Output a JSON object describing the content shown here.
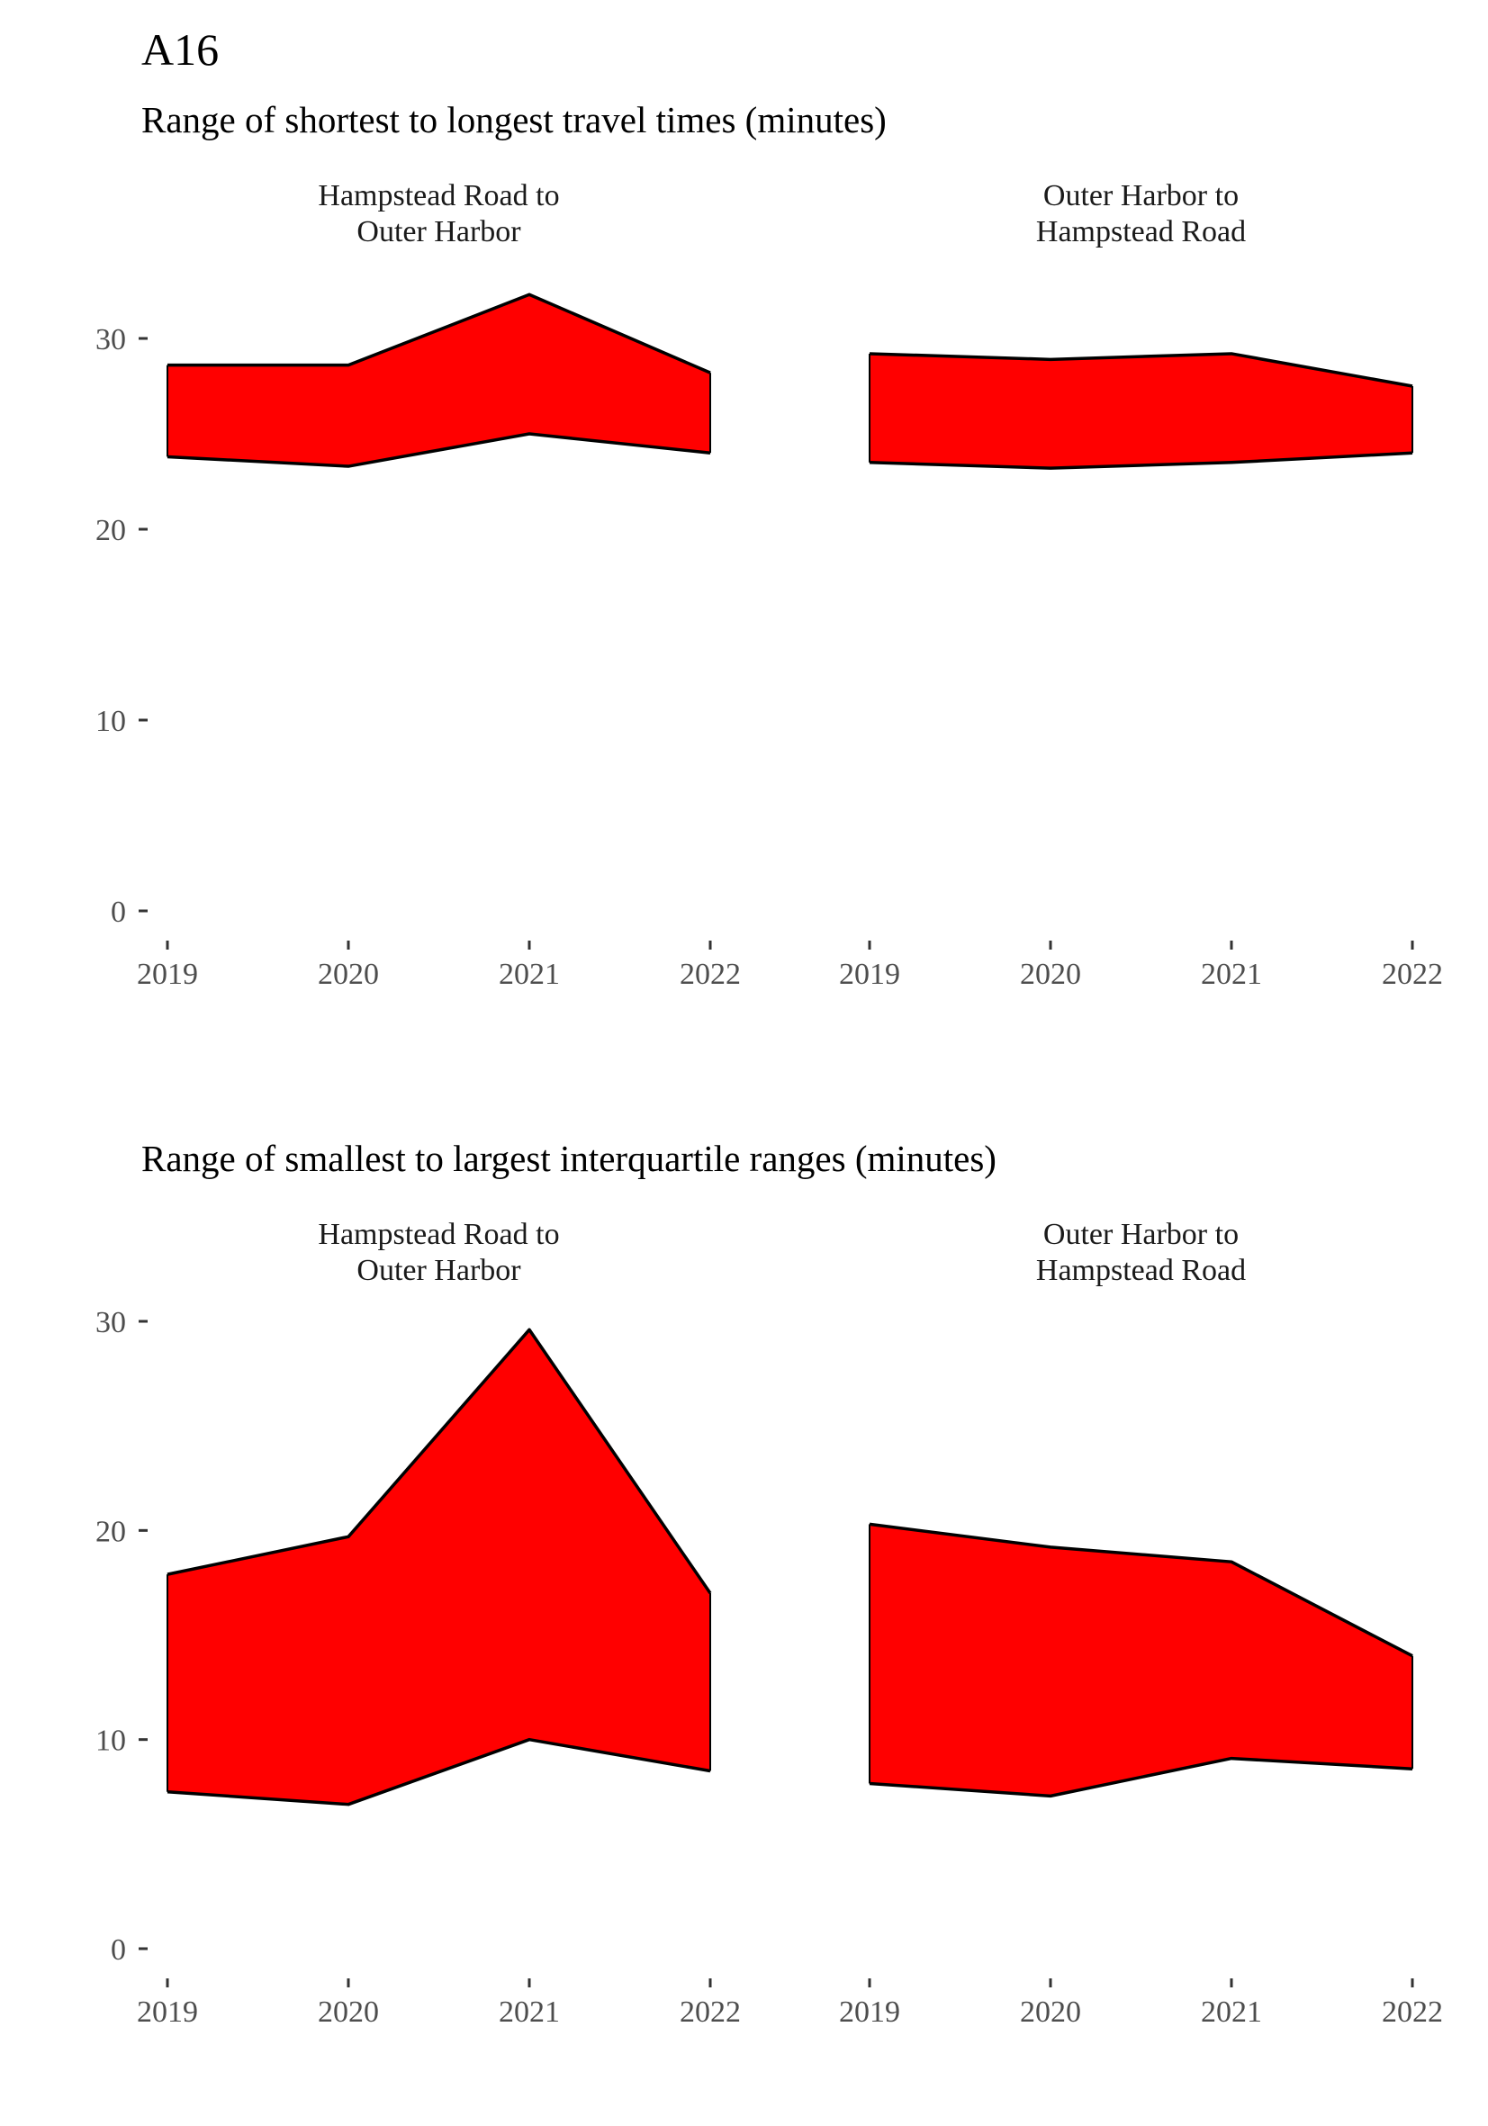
{
  "page": {
    "title": "A16"
  },
  "chart_data": [
    {
      "type": "area",
      "title": "Range of shortest to longest travel times (minutes)",
      "xlabel": "",
      "ylabel": "",
      "x": [
        "2019",
        "2020",
        "2021",
        "2022"
      ],
      "ylim": [
        0,
        35
      ],
      "y_ticks": [
        0,
        10,
        20,
        30
      ],
      "grid": false,
      "colors": {
        "fill": "#ff0000",
        "outline": "#000000"
      },
      "panels": [
        {
          "label": "Hampstead Road to\nOuter Harbor",
          "min": [
            23.8,
            23.3,
            25.0,
            24.0
          ],
          "max": [
            28.6,
            28.6,
            32.3,
            28.2
          ]
        },
        {
          "label": "Outer Harbor to\nHampstead Road",
          "min": [
            23.5,
            23.2,
            23.5,
            24.0
          ],
          "max": [
            29.2,
            28.9,
            29.2,
            27.5
          ]
        }
      ]
    },
    {
      "type": "area",
      "title": "Range of smallest to largest interquartile ranges (minutes)",
      "xlabel": "",
      "ylabel": "",
      "x": [
        "2019",
        "2020",
        "2021",
        "2022"
      ],
      "ylim": [
        0,
        31
      ],
      "y_ticks": [
        0,
        10,
        20,
        30
      ],
      "grid": false,
      "colors": {
        "fill": "#ff0000",
        "outline": "#000000"
      },
      "panels": [
        {
          "label": "Hampstead Road to\nOuter Harbor",
          "min": [
            7.5,
            6.9,
            10.0,
            8.5
          ],
          "max": [
            17.9,
            19.7,
            29.6,
            17.0
          ]
        },
        {
          "label": "Outer Harbor to\nHampstead Road",
          "min": [
            7.9,
            7.3,
            9.1,
            8.6
          ],
          "max": [
            20.3,
            19.2,
            18.5,
            14.0
          ]
        }
      ]
    }
  ]
}
